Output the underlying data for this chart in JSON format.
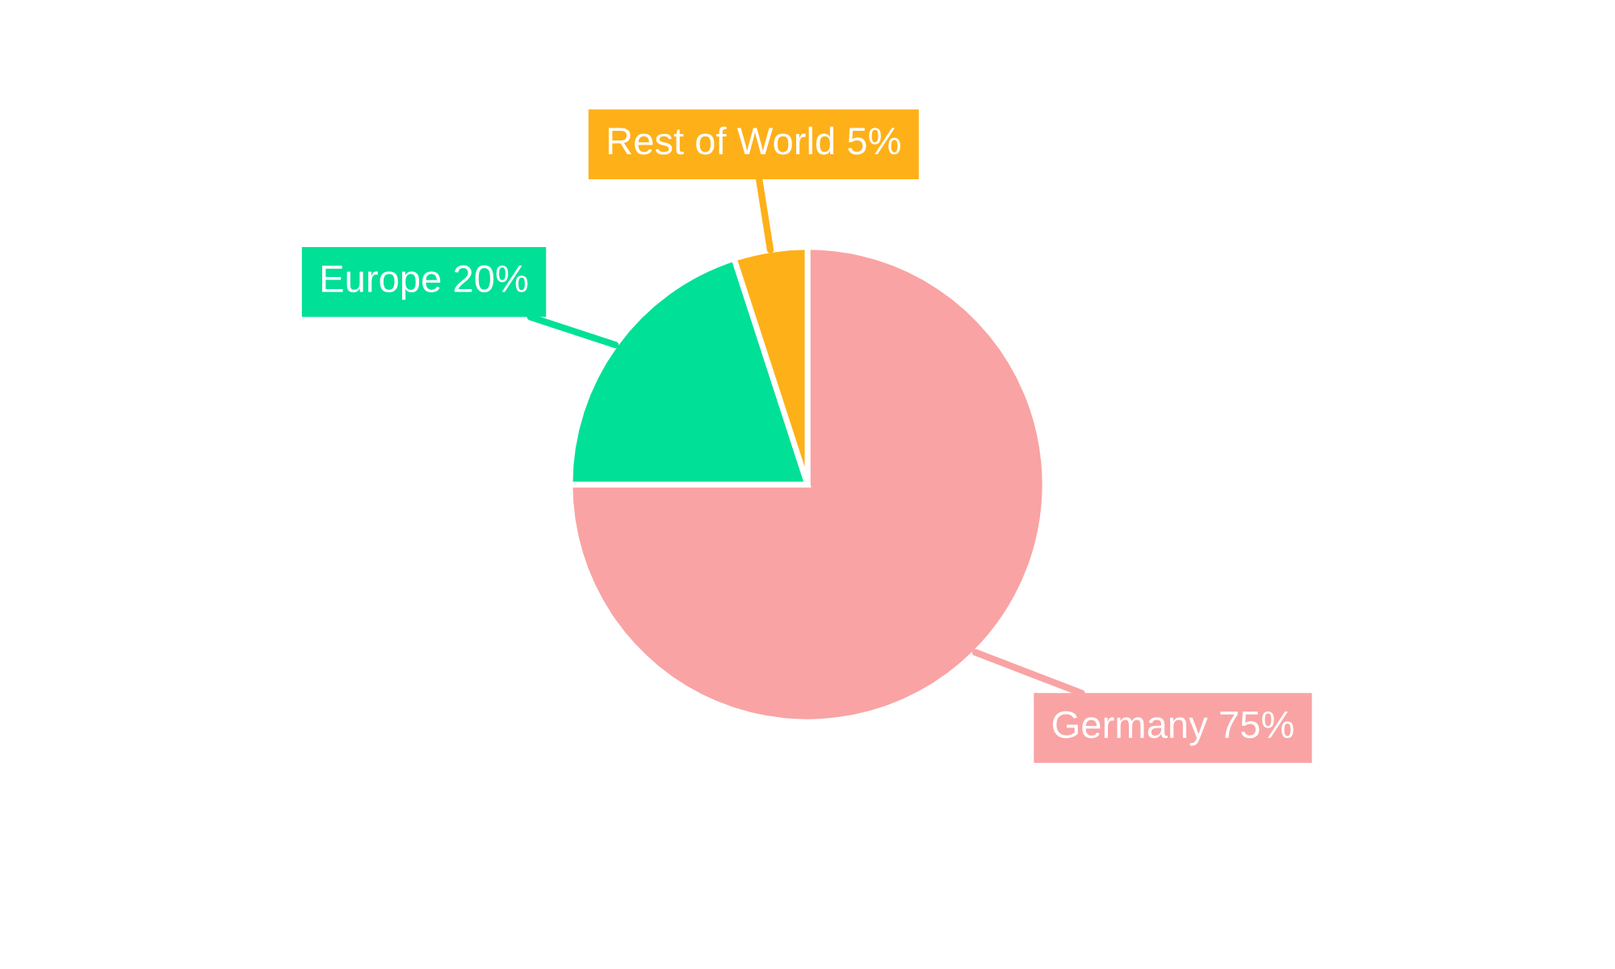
{
  "chart_data": {
    "type": "pie",
    "categories": [
      "Germany",
      "Europe",
      "Rest of World"
    ],
    "values": [
      75,
      20,
      5
    ],
    "colors": [
      "#f9a3a4",
      "#00e096",
      "#feb019"
    ],
    "value_labels": [
      "75%",
      "20%",
      "5%"
    ],
    "legend": false
  }
}
